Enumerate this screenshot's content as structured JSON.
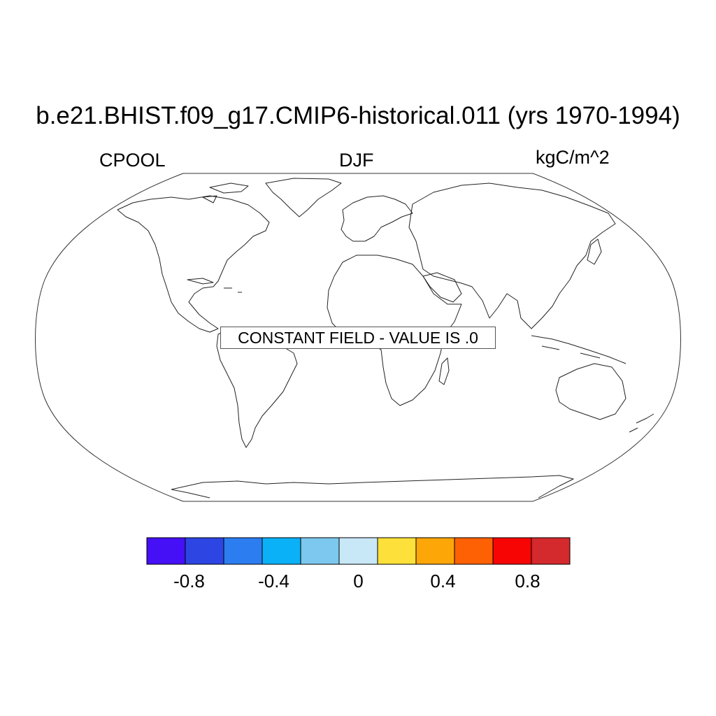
{
  "title": "b.e21.BHIST.f09_g17.CMIP6-historical.011 (yrs 1970-1994)",
  "left_label": "CPOOL",
  "center_label": "DJF",
  "right_label": "kgC/m^2",
  "notice": "CONSTANT FIELD - VALUE IS .0",
  "map": {
    "projection": "robinson",
    "features": [
      "coastlines"
    ],
    "field_value": 0.0
  },
  "colorbar": {
    "colors": [
      "#4510f5",
      "#2d45e3",
      "#2c7df0",
      "#0bb1f7",
      "#7cc8ee",
      "#c8e7f7",
      "#fde03a",
      "#fca607",
      "#fd6103",
      "#f70404",
      "#d4292d"
    ],
    "tick_labels": [
      "-0.8",
      "-0.4",
      "0",
      "0.4",
      "0.8"
    ],
    "tick_values": [
      -0.8,
      -0.4,
      0,
      0.4,
      0.8
    ],
    "range": [
      -1.0,
      1.0
    ]
  }
}
